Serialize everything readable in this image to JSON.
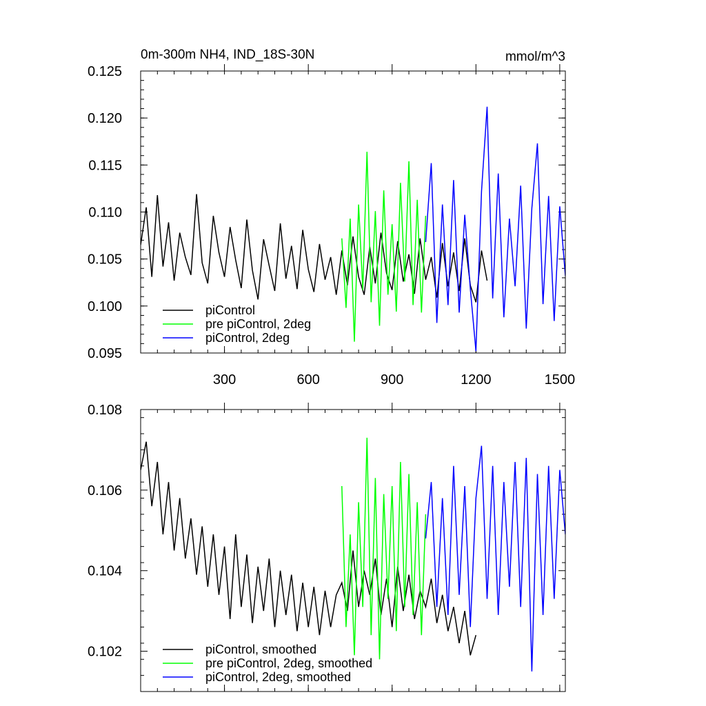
{
  "chart_data": [
    {
      "type": "line",
      "title": "0m-300m NH4, IND_18S-30N",
      "units": "mmol/m^3",
      "xlim": [
        0,
        1520
      ],
      "ylim": [
        0.095,
        0.125
      ],
      "xticks": [
        300,
        600,
        900,
        1200,
        1500
      ],
      "xtick_labels": [
        "300",
        "600",
        "900",
        "1200",
        "1500"
      ],
      "yticks": [
        0.095,
        0.1,
        0.105,
        0.11,
        0.115,
        0.12,
        0.125
      ],
      "ytick_labels": [
        "0.095",
        "0.100",
        "0.105",
        "0.110",
        "0.115",
        "0.120",
        "0.125"
      ],
      "legend_position": "bottom-left",
      "series": [
        {
          "name": "piControl",
          "color": "#000000",
          "x": [
            0,
            20,
            40,
            60,
            80,
            100,
            120,
            140,
            160,
            180,
            200,
            220,
            240,
            260,
            280,
            300,
            320,
            340,
            360,
            380,
            400,
            420,
            440,
            460,
            480,
            500,
            520,
            540,
            560,
            580,
            600,
            620,
            640,
            660,
            680,
            700,
            720,
            740,
            760,
            780,
            800,
            820,
            840,
            860,
            880,
            900,
            920,
            940,
            960,
            980,
            1000,
            1020,
            1040,
            1060,
            1080,
            1100,
            1120,
            1140,
            1160,
            1180,
            1200,
            1220,
            1240
          ],
          "y": [
            0.1065,
            0.1105,
            0.1031,
            0.1118,
            0.1042,
            0.1089,
            0.1027,
            0.1078,
            0.1052,
            0.1033,
            0.1119,
            0.1046,
            0.1024,
            0.1096,
            0.1057,
            0.1031,
            0.1084,
            0.1049,
            0.1019,
            0.1092,
            0.1038,
            0.1007,
            0.1071,
            0.1043,
            0.1016,
            0.1088,
            0.1029,
            0.1064,
            0.1018,
            0.1081,
            0.1039,
            0.1015,
            0.1066,
            0.1028,
            0.1052,
            0.1012,
            0.1059,
            0.1022,
            0.1074,
            0.1031,
            0.1012,
            0.1063,
            0.1024,
            0.1078,
            0.1035,
            0.1017,
            0.1069,
            0.1026,
            0.1055,
            0.1013,
            0.1072,
            0.1028,
            0.1052,
            0.1009,
            0.1067,
            0.1021,
            0.1057,
            0.1016,
            0.1072,
            0.1022,
            0.1004,
            0.1059,
            0.1027
          ]
        },
        {
          "name": "pre piControl, 2deg",
          "color": "#00ff00",
          "x": [
            720,
            735,
            750,
            765,
            780,
            795,
            810,
            825,
            840,
            855,
            870,
            885,
            900,
            915,
            930,
            945,
            960,
            975,
            990,
            1005,
            1020
          ],
          "y": [
            0.1072,
            0.0998,
            0.1093,
            0.0962,
            0.1108,
            0.1017,
            0.1164,
            0.1004,
            0.1101,
            0.0979,
            0.1123,
            0.1012,
            0.1087,
            0.0994,
            0.1131,
            0.1026,
            0.1154,
            0.1001,
            0.1113,
            0.0993,
            0.1096
          ]
        },
        {
          "name": "piControl, 2deg",
          "color": "#0000ff",
          "x": [
            1020,
            1040,
            1060,
            1080,
            1100,
            1120,
            1140,
            1160,
            1180,
            1200,
            1220,
            1240,
            1260,
            1280,
            1300,
            1320,
            1340,
            1360,
            1380,
            1400,
            1420,
            1440,
            1460,
            1480,
            1500,
            1520
          ],
          "y": [
            0.1068,
            0.1152,
            0.0982,
            0.1108,
            0.1001,
            0.1134,
            0.0993,
            0.1097,
            0.1018,
            0.0952,
            0.1122,
            0.1212,
            0.1008,
            0.1141,
            0.0988,
            0.1093,
            0.1021,
            0.1128,
            0.0976,
            0.1104,
            0.1173,
            0.1002,
            0.1117,
            0.0984,
            0.1106,
            0.1032
          ]
        }
      ]
    },
    {
      "type": "line",
      "xlim": [
        0,
        1520
      ],
      "ylim": [
        0.101,
        0.108
      ],
      "yticks": [
        0.102,
        0.104,
        0.106,
        0.108
      ],
      "ytick_labels": [
        "0.102",
        "0.104",
        "0.106",
        "0.108"
      ],
      "legend_position": "bottom-left",
      "series": [
        {
          "name": "piControl, smoothed",
          "color": "#000000",
          "x": [
            0,
            20,
            40,
            60,
            80,
            100,
            120,
            140,
            160,
            180,
            200,
            220,
            240,
            260,
            280,
            300,
            320,
            340,
            360,
            380,
            400,
            420,
            440,
            460,
            480,
            500,
            520,
            540,
            560,
            580,
            600,
            620,
            640,
            660,
            680,
            700,
            720,
            740,
            760,
            780,
            800,
            820,
            840,
            860,
            880,
            900,
            920,
            940,
            960,
            980,
            1000,
            1020,
            1040,
            1060,
            1080,
            1100,
            1120,
            1140,
            1160,
            1180,
            1200
          ],
          "y": [
            0.1065,
            0.1072,
            0.1056,
            0.1067,
            0.1049,
            0.1062,
            0.1045,
            0.1058,
            0.1043,
            0.1053,
            0.1039,
            0.1051,
            0.1036,
            0.1049,
            0.1034,
            0.1046,
            0.1028,
            0.1049,
            0.1031,
            0.1044,
            0.1027,
            0.1041,
            0.103,
            0.1043,
            0.1026,
            0.104,
            0.1029,
            0.1039,
            0.1025,
            0.1037,
            0.1026,
            0.1036,
            0.1024,
            0.1035,
            0.1026,
            0.1034,
            0.1037,
            0.103,
            0.1045,
            0.1031,
            0.104,
            0.1034,
            0.1043,
            0.1029,
            0.1038,
            0.1026,
            0.1041,
            0.103,
            0.1039,
            0.1028,
            0.1035,
            0.1031,
            0.1038,
            0.1027,
            0.1034,
            0.1025,
            0.1031,
            0.1022,
            0.103,
            0.1019,
            0.1024
          ]
        },
        {
          "name": "pre piControl, 2deg, smoothed",
          "color": "#00ff00",
          "x": [
            720,
            735,
            750,
            765,
            780,
            795,
            810,
            825,
            840,
            855,
            870,
            885,
            900,
            915,
            930,
            945,
            960,
            975,
            990,
            1005,
            1020
          ],
          "y": [
            0.1061,
            0.1026,
            0.1049,
            0.1019,
            0.1057,
            0.1031,
            0.1073,
            0.1024,
            0.1063,
            0.1018,
            0.1059,
            0.1033,
            0.1061,
            0.1025,
            0.1067,
            0.1031,
            0.1064,
            0.1029,
            0.1057,
            0.1024,
            0.1054
          ]
        },
        {
          "name": "piControl, 2deg, smoothed",
          "color": "#0000ff",
          "x": [
            1020,
            1040,
            1060,
            1080,
            1100,
            1120,
            1140,
            1160,
            1180,
            1200,
            1220,
            1240,
            1260,
            1280,
            1300,
            1320,
            1340,
            1360,
            1380,
            1400,
            1420,
            1440,
            1460,
            1480,
            1500,
            1520
          ],
          "y": [
            0.1048,
            0.1062,
            0.1031,
            0.1058,
            0.1029,
            0.1066,
            0.1034,
            0.1061,
            0.1026,
            0.1058,
            0.1071,
            0.1033,
            0.1066,
            0.1029,
            0.1062,
            0.1036,
            0.1067,
            0.1031,
            0.1068,
            0.1015,
            0.1064,
            0.1029,
            0.1066,
            0.1033,
            0.1065,
            0.1049
          ]
        }
      ]
    }
  ]
}
